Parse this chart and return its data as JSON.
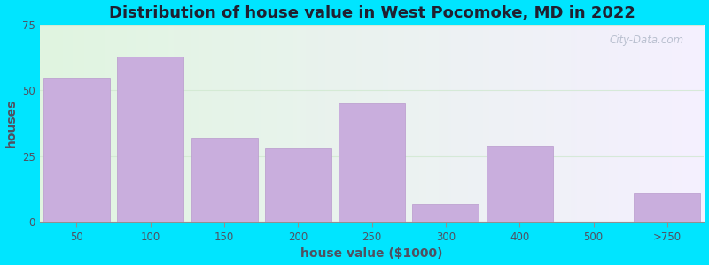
{
  "title": "Distribution of house value in West Pocomoke, MD in 2022",
  "xlabel": "house value ($1000)",
  "ylabel": "houses",
  "categories": [
    "50",
    "100",
    "150",
    "200",
    "250",
    "300",
    "400",
    "500",
    ">750"
  ],
  "bar_lefts": [
    0,
    1,
    2,
    3,
    4,
    5,
    6,
    7,
    8
  ],
  "bar_widths": [
    1,
    1,
    1,
    1,
    1,
    1,
    1,
    1,
    1
  ],
  "values": [
    55,
    63,
    32,
    28,
    45,
    7,
    29,
    0,
    11
  ],
  "bar_color": "#c9aedd",
  "bar_edge_color": "#b899cc",
  "ylim": [
    0,
    75
  ],
  "yticks": [
    0,
    25,
    50,
    75
  ],
  "bg_color_topleft": "#e0f5e0",
  "bg_color_topright": "#f5f5ff",
  "bg_color_bottomleft": "#d8f0e8",
  "bg_color_bottomright": "#f0f0fa",
  "outer_bg": "#00e5ff",
  "title_fontsize": 13,
  "axis_label_fontsize": 10,
  "tick_fontsize": 8.5,
  "watermark_text": "City-Data.com",
  "grid_color": "#d0e8d0",
  "grid_alpha": 0.8
}
